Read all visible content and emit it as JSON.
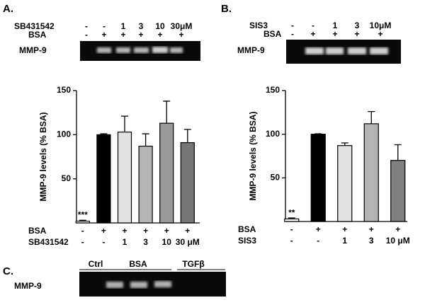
{
  "panel_labels": [
    "A.",
    "B.",
    "C."
  ],
  "gels": [
    {
      "row_labels": [
        "SB431542",
        "BSA"
      ],
      "rows": [
        [
          "-",
          "-",
          "1",
          "3",
          "10",
          "30μM"
        ],
        [
          "-",
          "+",
          "+",
          "+",
          "+",
          "+"
        ]
      ],
      "band_label": "MMP-9"
    },
    {
      "row_labels": [
        "SIS3",
        "BSA"
      ],
      "rows": [
        [
          "-",
          "-",
          "1",
          "3",
          "10μM"
        ],
        [
          "-",
          "+",
          "+",
          "+",
          "+"
        ]
      ],
      "band_label": "MMP-9"
    },
    {
      "lane_groups": [
        "Ctrl",
        "BSA",
        "TGFβ"
      ],
      "band_label": "MMP-9"
    }
  ],
  "chart_data": [
    {
      "type": "bar",
      "ylabel": "MMP-9 levels (% BSA)",
      "ylim": [
        0,
        150
      ],
      "yticks": [
        50,
        100,
        150
      ],
      "values": [
        2,
        100,
        103,
        87,
        113,
        91
      ],
      "errors": [
        1,
        1,
        18,
        14,
        25,
        15
      ],
      "colors": [
        "#ffffff",
        "#000000",
        "#e2e2e2",
        "#b4b4b4",
        "#999999",
        "#767676"
      ],
      "bar_notes": [
        "***",
        null,
        null,
        null,
        null,
        null
      ],
      "x_label_rows": [
        {
          "name": "BSA",
          "labels": [
            "-",
            "+",
            "+",
            "+",
            "+",
            "+"
          ]
        },
        {
          "name": "SB431542",
          "labels": [
            "-",
            "-",
            "1",
            "3",
            "10",
            "30 μM"
          ]
        }
      ]
    },
    {
      "type": "bar",
      "ylabel": "MMP-9 levels (% BSA)",
      "ylim": [
        0,
        150
      ],
      "yticks": [
        50,
        100,
        150
      ],
      "values": [
        3,
        100,
        87,
        112,
        70
      ],
      "errors": [
        1,
        0.5,
        3,
        14,
        18
      ],
      "colors": [
        "#ffffff",
        "#000000",
        "#e2e2e2",
        "#b4b4b4",
        "#808080"
      ],
      "bar_notes": [
        "**",
        null,
        null,
        null,
        null
      ],
      "x_label_rows": [
        {
          "name": "BSA",
          "labels": [
            "-",
            "+",
            "+",
            "+",
            "+"
          ]
        },
        {
          "name": "SIS3",
          "labels": [
            "-",
            "-",
            "1",
            "3",
            "10 μM"
          ]
        }
      ]
    }
  ]
}
